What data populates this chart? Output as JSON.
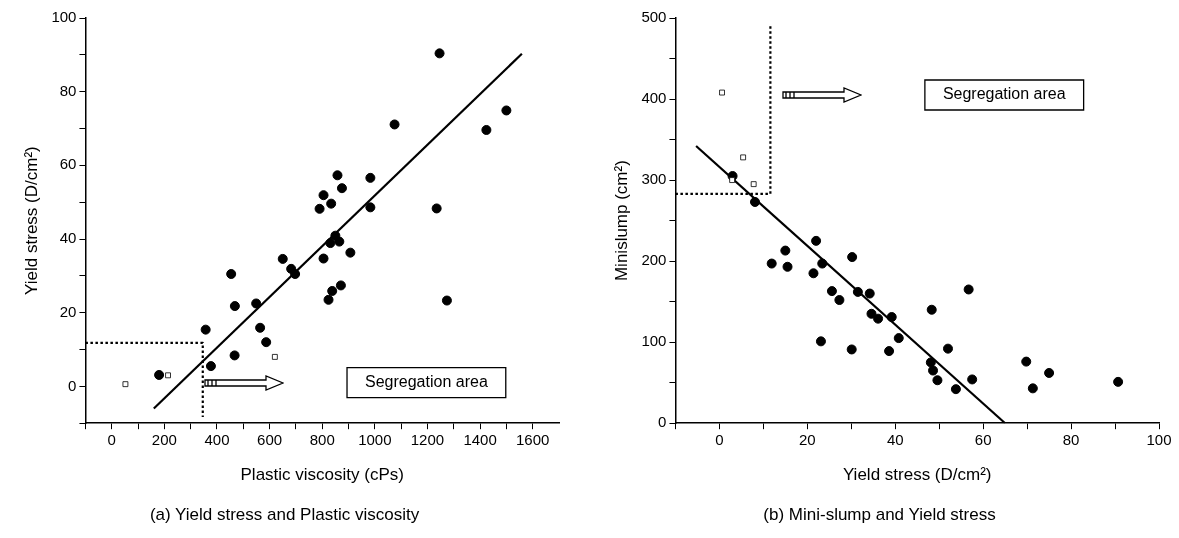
{
  "chart_data": [
    {
      "type": "scatter",
      "title": "(a) Yield stress and Plastic viscosity",
      "xlabel": "Plastic viscosity (cPs)",
      "ylabel": "Yield stress (D/cm²)",
      "xlim": [
        -100,
        1700
      ],
      "xticks": [
        {
          "value": -100,
          "label": null
        },
        0,
        {
          "value": 100,
          "label": null
        },
        200,
        {
          "value": 300,
          "label": null
        },
        400,
        {
          "value": 500,
          "label": null
        },
        600,
        {
          "value": 700,
          "label": null
        },
        800,
        {
          "value": 900,
          "label": null
        },
        1000,
        {
          "value": 1100,
          "label": null
        },
        1200,
        {
          "value": 1300,
          "label": null
        },
        1400,
        {
          "value": 1500,
          "label": null
        },
        1600
      ],
      "ylim": [
        -10,
        100
      ],
      "yticks": [
        {
          "value": -10,
          "label": null
        },
        0,
        {
          "value": 10,
          "label": null
        },
        20,
        {
          "value": 30,
          "label": null
        },
        40,
        {
          "value": 50,
          "label": null
        },
        60,
        {
          "value": 70,
          "label": null
        },
        80,
        {
          "value": 90,
          "label": null
        },
        100
      ],
      "grid": false,
      "legend": false,
      "annotations": [
        "Segregation area"
      ],
      "series": [
        {
          "type": "scatter",
          "marker": "circle",
          "color": "#000000",
          "x": [
            180,
            357,
            377,
            454,
            468,
            467,
            549,
            564,
            587,
            650,
            682,
            697,
            790,
            805,
            834,
            858,
            875,
            805,
            850,
            831,
            865,
            907,
            824,
            838,
            871,
            983,
            983,
            1075,
            1235,
            1246,
            1274,
            1424,
            1500
          ],
          "values": [
            3.1,
            15.4,
            5.5,
            30.5,
            21.8,
            8.4,
            22.5,
            15.9,
            12.0,
            34.6,
            31.9,
            30.5,
            48.2,
            51.9,
            49.6,
            57.3,
            53.8,
            34.7,
            40.9,
            38.9,
            39.3,
            36.3,
            23.5,
            25.9,
            27.4,
            56.6,
            48.6,
            71.1,
            48.3,
            90.4,
            23.3,
            69.6,
            74.9
          ]
        },
        {
          "type": "scatter",
          "marker": "square",
          "color": "#000000",
          "x": [
            52,
            214,
            620
          ],
          "values": [
            0.6,
            3.0,
            8.0
          ]
        },
        {
          "type": "line",
          "marker": "none",
          "line_style": "solid",
          "color": "#000000",
          "x": [
            160,
            1559
          ],
          "values": [
            -6.0,
            90.3
          ]
        },
        {
          "type": "line",
          "marker": "none",
          "line_style": "dotted",
          "color": "#000000",
          "x": [
            -100,
            346,
            346
          ],
          "values": [
            11.8,
            11.8,
            -8.3
          ]
        }
      ]
    },
    {
      "type": "scatter",
      "title": "(b) Mini-slump and Yield stress",
      "xlabel": "Yield stress (D/cm²)",
      "ylabel": "Minislump (cm²)",
      "xlim": [
        -10,
        100
      ],
      "xticks": [
        {
          "value": -10,
          "label": null
        },
        0,
        {
          "value": 10,
          "label": null
        },
        20,
        {
          "value": 30,
          "label": null
        },
        40,
        {
          "value": 50,
          "label": null
        },
        60,
        {
          "value": 70,
          "label": null
        },
        80,
        {
          "value": 90,
          "label": null
        },
        100
      ],
      "ylim": [
        0,
        500
      ],
      "yticks": [
        0,
        {
          "value": 50,
          "label": null
        },
        100,
        {
          "value": 150,
          "label": null
        },
        200,
        {
          "value": 250,
          "label": null
        },
        300,
        {
          "value": 350,
          "label": null
        },
        400,
        {
          "value": 450,
          "label": null
        },
        500
      ],
      "grid": false,
      "legend": false,
      "annotations": [
        "Segregation area"
      ],
      "series": [
        {
          "type": "scatter",
          "marker": "circle",
          "color": "#000000",
          "x": [
            3.0,
            8.1,
            11.9,
            15.0,
            15.5,
            22.0,
            21.4,
            23.4,
            23.1,
            25.6,
            27.3,
            30.2,
            30.1,
            31.5,
            34.2,
            34.6,
            36.1,
            39.2,
            40.8,
            38.6,
            48.3,
            48.1,
            48.6,
            49.6,
            52.0,
            53.8,
            56.7,
            57.5,
            69.8,
            71.3,
            75.0,
            90.7
          ],
          "values": [
            305,
            273,
            197,
            213,
            193,
            225,
            185,
            197,
            101,
            163,
            152,
            205,
            91,
            162,
            160,
            135,
            129,
            131,
            105,
            89,
            140,
            75,
            65,
            53,
            92,
            42,
            165,
            54,
            76,
            43,
            62,
            51
          ]
        },
        {
          "type": "scatter",
          "marker": "square",
          "color": "#000000",
          "x": [
            0.6,
            5.4,
            2.9,
            7.8
          ],
          "values": [
            408,
            328,
            300,
            295
          ]
        },
        {
          "type": "line",
          "marker": "none",
          "line_style": "solid",
          "color": "#000000",
          "x": [
            -5.3,
            65.0
          ],
          "values": [
            342,
            0
          ]
        },
        {
          "type": "line",
          "marker": "none",
          "line_style": "dotted",
          "color": "#000000",
          "x": [
            -10,
            11.6,
            11.6
          ],
          "values": [
            283,
            283,
            493
          ]
        }
      ]
    }
  ]
}
